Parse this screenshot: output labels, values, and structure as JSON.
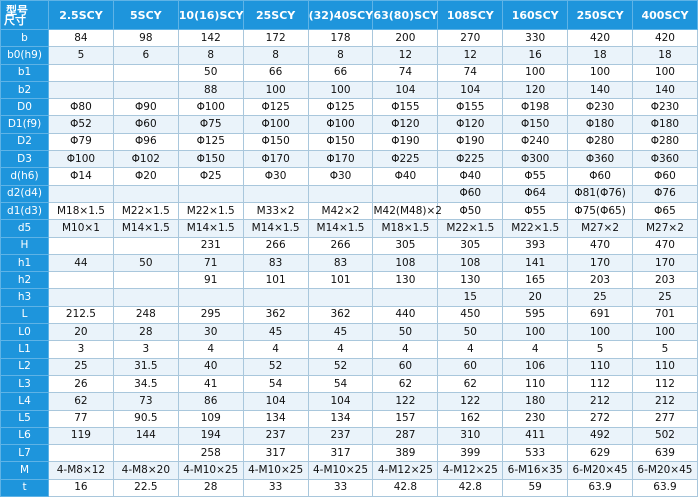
{
  "table": {
    "corner_top": "型号",
    "corner_bottom": "尺寸",
    "columns": [
      "2.5SCY",
      "5SCY",
      "10(16)SCY",
      "25SCY",
      "(32)40SCY",
      "63(80)SCY",
      "108SCY",
      "160SCY",
      "250SCY",
      "400SCY"
    ],
    "rows": [
      {
        "label": "b",
        "values": [
          "84",
          "98",
          "142",
          "172",
          "178",
          "200",
          "270",
          "330",
          "420",
          "420"
        ]
      },
      {
        "label": "b0(h9)",
        "values": [
          "5",
          "6",
          "8",
          "8",
          "8",
          "12",
          "12",
          "16",
          "18",
          "18"
        ]
      },
      {
        "label": "b1",
        "values": [
          "",
          "",
          "50",
          "66",
          "66",
          "74",
          "74",
          "100",
          "100",
          "100"
        ]
      },
      {
        "label": "b2",
        "values": [
          "",
          "",
          "88",
          "100",
          "100",
          "104",
          "104",
          "120",
          "140",
          "140"
        ]
      },
      {
        "label": "D0",
        "values": [
          "Φ80",
          "Φ90",
          "Φ100",
          "Φ125",
          "Φ125",
          "Φ155",
          "Φ155",
          "Φ198",
          "Φ230",
          "Φ230"
        ]
      },
      {
        "label": "D1(f9)",
        "values": [
          "Φ52",
          "Φ60",
          "Φ75",
          "Φ100",
          "Φ100",
          "Φ120",
          "Φ120",
          "Φ150",
          "Φ180",
          "Φ180"
        ]
      },
      {
        "label": "D2",
        "values": [
          "Φ79",
          "Φ96",
          "Φ125",
          "Φ150",
          "Φ150",
          "Φ190",
          "Φ190",
          "Φ240",
          "Φ280",
          "Φ280"
        ]
      },
      {
        "label": "D3",
        "values": [
          "Φ100",
          "Φ102",
          "Φ150",
          "Φ170",
          "Φ170",
          "Φ225",
          "Φ225",
          "Φ300",
          "Φ360",
          "Φ360"
        ]
      },
      {
        "label": "d(h6)",
        "values": [
          "Φ14",
          "Φ20",
          "Φ25",
          "Φ30",
          "Φ30",
          "Φ40",
          "Φ40",
          "Φ55",
          "Φ60",
          "Φ60"
        ]
      },
      {
        "label": "d2(d4)",
        "values": [
          "",
          "",
          "",
          "",
          "",
          "",
          "Φ60",
          "Φ64",
          "Φ81(Φ76)",
          "Φ76"
        ]
      },
      {
        "label": "d1(d3)",
        "values": [
          "M18×1.5",
          "M22×1.5",
          "M22×1.5",
          "M33×2",
          "M42×2",
          "M42(M48)×2",
          "Φ50",
          "Φ55",
          "Φ75(Φ65)",
          "Φ65"
        ]
      },
      {
        "label": "d5",
        "values": [
          "M10×1",
          "M14×1.5",
          "M14×1.5",
          "M14×1.5",
          "M14×1.5",
          "M18×1.5",
          "M22×1.5",
          "M22×1.5",
          "M27×2",
          "M27×2"
        ]
      },
      {
        "label": "H",
        "values": [
          "",
          "",
          "231",
          "266",
          "266",
          "305",
          "305",
          "393",
          "470",
          "470"
        ]
      },
      {
        "label": "h1",
        "values": [
          "44",
          "50",
          "71",
          "83",
          "83",
          "108",
          "108",
          "141",
          "170",
          "170"
        ]
      },
      {
        "label": "h2",
        "values": [
          "",
          "",
          "91",
          "101",
          "101",
          "130",
          "130",
          "165",
          "203",
          "203"
        ]
      },
      {
        "label": "h3",
        "values": [
          "",
          "",
          "",
          "",
          "",
          "",
          "15",
          "20",
          "25",
          "25"
        ]
      },
      {
        "label": "L",
        "values": [
          "212.5",
          "248",
          "295",
          "362",
          "362",
          "440",
          "450",
          "595",
          "691",
          "701"
        ]
      },
      {
        "label": "L0",
        "values": [
          "20",
          "28",
          "30",
          "45",
          "45",
          "50",
          "50",
          "100",
          "100",
          "100"
        ]
      },
      {
        "label": "L1",
        "values": [
          "3",
          "3",
          "4",
          "4",
          "4",
          "4",
          "4",
          "4",
          "5",
          "5"
        ]
      },
      {
        "label": "L2",
        "values": [
          "25",
          "31.5",
          "40",
          "52",
          "52",
          "60",
          "60",
          "106",
          "110",
          "110"
        ]
      },
      {
        "label": "L3",
        "values": [
          "26",
          "34.5",
          "41",
          "54",
          "54",
          "62",
          "62",
          "110",
          "112",
          "112"
        ]
      },
      {
        "label": "L4",
        "values": [
          "62",
          "73",
          "86",
          "104",
          "104",
          "122",
          "122",
          "180",
          "212",
          "212"
        ]
      },
      {
        "label": "L5",
        "values": [
          "77",
          "90.5",
          "109",
          "134",
          "134",
          "157",
          "162",
          "230",
          "272",
          "277"
        ]
      },
      {
        "label": "L6",
        "values": [
          "119",
          "144",
          "194",
          "237",
          "237",
          "287",
          "310",
          "411",
          "492",
          "502"
        ]
      },
      {
        "label": "L7",
        "values": [
          "",
          "",
          "258",
          "317",
          "317",
          "389",
          "399",
          "533",
          "629",
          "639"
        ]
      },
      {
        "label": "M",
        "values": [
          "4-M8×12",
          "4-M8×20",
          "4-M10×25",
          "4-M10×25",
          "4-M10×25",
          "4-M12×25",
          "4-M12×25",
          "6-M16×35",
          "6-M20×45",
          "6-M20×45"
        ]
      },
      {
        "label": "t",
        "values": [
          "16",
          "22.5",
          "28",
          "33",
          "33",
          "42.8",
          "42.8",
          "59",
          "63.9",
          "63.9"
        ]
      }
    ]
  }
}
